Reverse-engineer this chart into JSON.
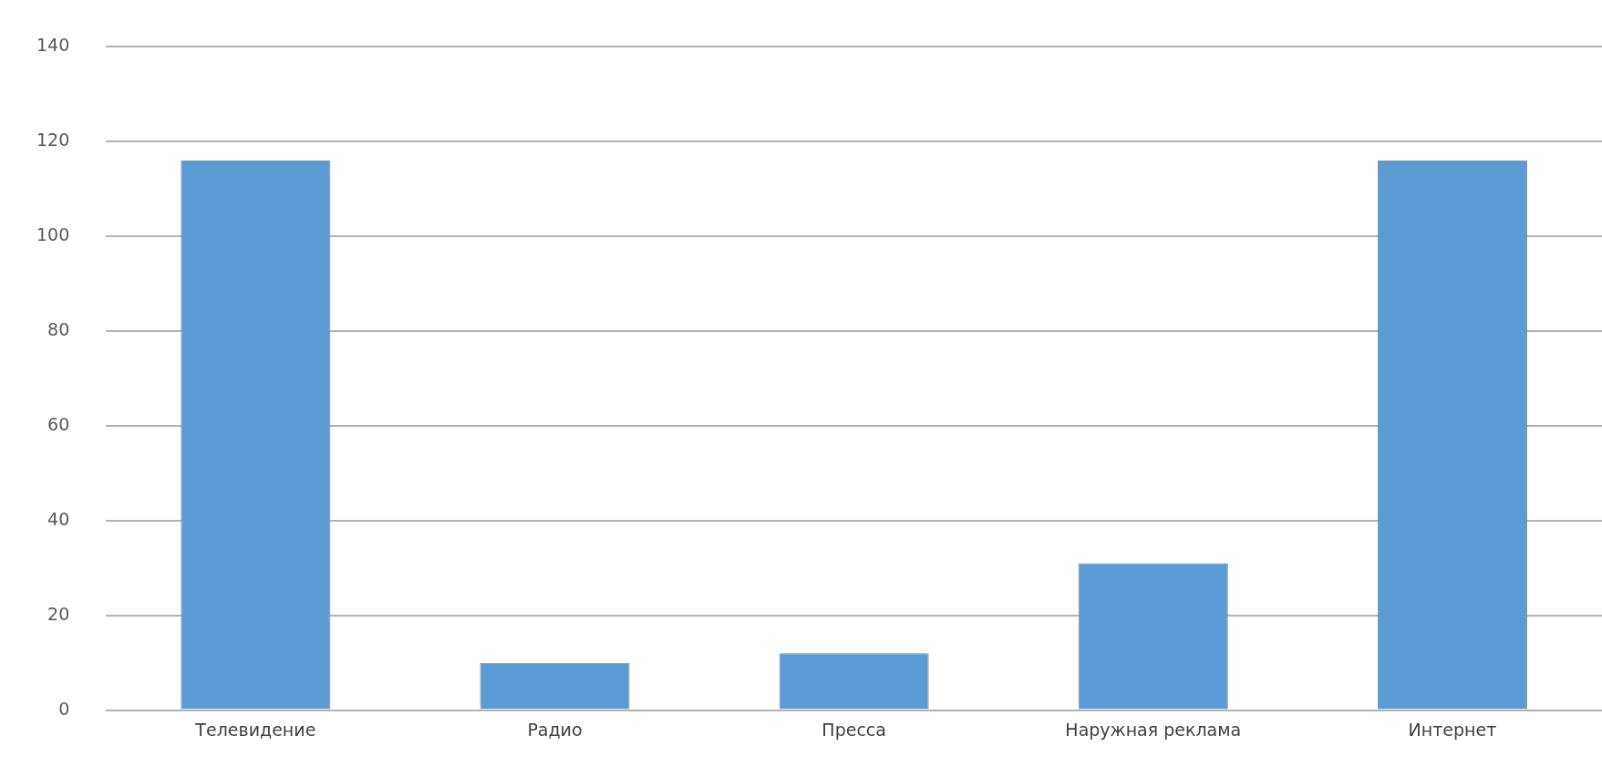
{
  "chart_data": {
    "type": "bar",
    "categories": [
      "Телевидение",
      "Радио",
      "Пресса",
      "Наружная реклама",
      "Интернет"
    ],
    "values": [
      116,
      10,
      12,
      31,
      116
    ],
    "color": "#5b9bd5",
    "ylim": [
      0,
      140
    ],
    "yticks": [
      0,
      20,
      40,
      60,
      80,
      100,
      120,
      140
    ],
    "grid": "y",
    "legend": false
  }
}
